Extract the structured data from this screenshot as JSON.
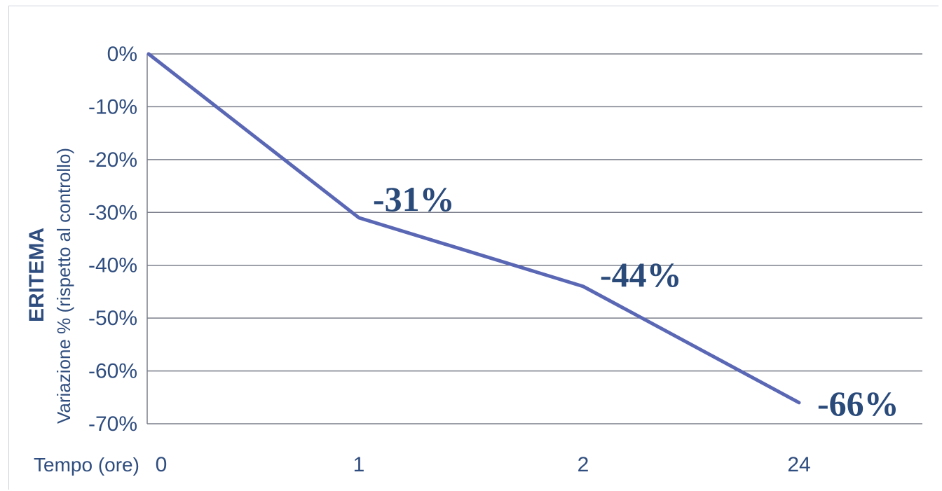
{
  "chart_data": {
    "type": "line",
    "ylabel_bold": "ERITEMA",
    "ylabel": "Variazione % (rispetto al controllo)",
    "xlabel": "Tempo (ore)",
    "categories": [
      "0",
      "1",
      "2",
      "24"
    ],
    "values": [
      0,
      -31,
      -44,
      -66
    ],
    "data_labels": [
      "",
      "-31%",
      "-44%",
      "-66%"
    ],
    "y_ticks": [
      "0%",
      "-10%",
      "-20%",
      "-30%",
      "-40%",
      "-50%",
      "-60%",
      "-70%"
    ],
    "y_tick_values": [
      0,
      -10,
      -20,
      -30,
      -40,
      -50,
      -60,
      -70
    ],
    "ylim": [
      -70,
      0
    ],
    "grid": true,
    "line_color": "#5a67b4",
    "text_color": "#2f4d7e",
    "grid_color": "#7a7e8a"
  }
}
